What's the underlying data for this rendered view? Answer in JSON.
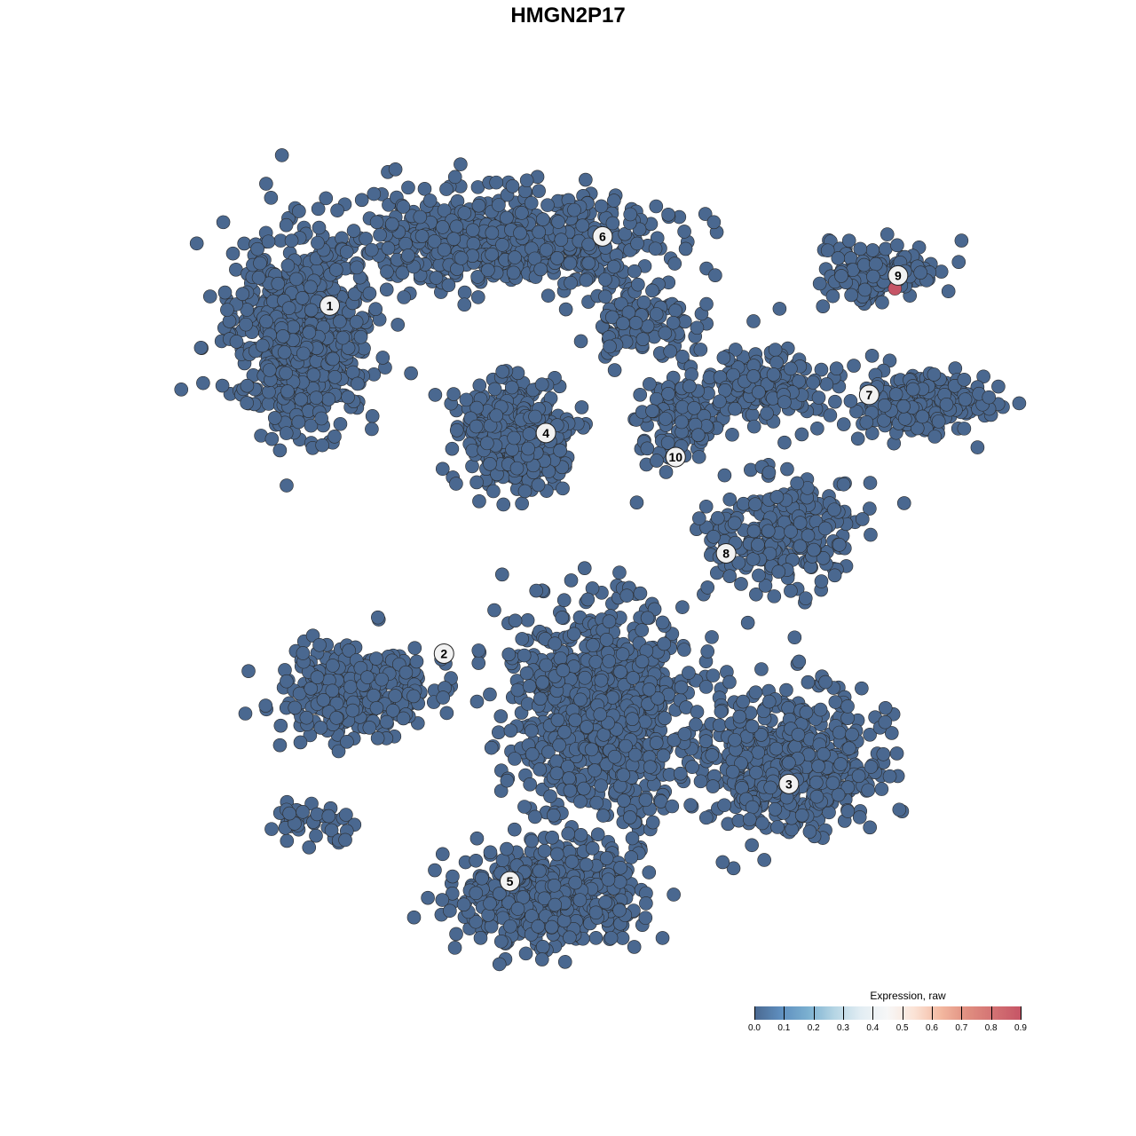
{
  "chart_data": {
    "type": "scatter",
    "title": "HMGN2P17",
    "xlabel": "",
    "ylabel": "",
    "grid": false,
    "axes_visible": false,
    "point_color_default": "#4a6890",
    "point_edge_color": "#2b2b2b",
    "clusters": [
      {
        "label": "1",
        "x": -25.3,
        "y": 25.9
      },
      {
        "label": "2",
        "x": -14.2,
        "y": -8.8
      },
      {
        "label": "3",
        "x": 19.3,
        "y": -21.8
      },
      {
        "label": "4",
        "x": -4.3,
        "y": 13.2
      },
      {
        "label": "5",
        "x": -7.8,
        "y": -31.5
      },
      {
        "label": "6",
        "x": 1.2,
        "y": 32.8
      },
      {
        "label": "7",
        "x": 27.1,
        "y": 17.0
      },
      {
        "label": "8",
        "x": 13.2,
        "y": 1.2
      },
      {
        "label": "9",
        "x": 29.9,
        "y": 28.9
      },
      {
        "label": "10",
        "x": 8.3,
        "y": 10.8
      }
    ],
    "highlighted_points": [
      {
        "x": 29.6,
        "y": 27.6,
        "value": 0.9
      }
    ],
    "all_other_points_value": 0.0,
    "legend": {
      "title": "Expression, raw",
      "placement": "bottom-right",
      "ticks": [
        "0.0",
        "0.1",
        "0.2",
        "0.3",
        "0.4",
        "0.5",
        "0.6",
        "0.7",
        "0.8",
        "0.9"
      ],
      "range": [
        0,
        0.9
      ],
      "colors": [
        "#4a6890",
        "#f7f7f7",
        "#c65566"
      ]
    }
  }
}
